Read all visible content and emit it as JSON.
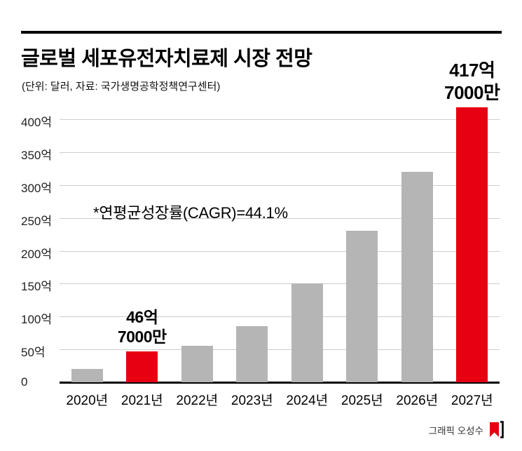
{
  "header": {
    "title": "글로벌 세포유전자치료제 시장 전망",
    "subtitle": "(단위: 달러, 자료: 국가생명공학정책연구센터)"
  },
  "chart_data": {
    "type": "bar",
    "title": "글로벌 세포유전자치료제 시장 전망",
    "unit_source_note": "(단위: 달러, 자료: 국가생명공학정책연구센터)",
    "annotation": "*연평균성장률(CAGR)=44.1%",
    "categories": [
      "2020년",
      "2021년",
      "2022년",
      "2023년",
      "2024년",
      "2025년",
      "2026년",
      "2027년"
    ],
    "values": [
      20,
      46.7,
      55,
      85,
      150,
      230,
      320,
      417.7
    ],
    "highlight_indices": [
      1,
      7
    ],
    "value_labels": [
      {
        "index": 1,
        "lines": [
          "46억",
          "7000만"
        ]
      },
      {
        "index": 7,
        "lines": [
          "417억",
          "7000만"
        ]
      }
    ],
    "yticks": [
      {
        "label": "400억",
        "value": 400
      },
      {
        "label": "350억",
        "value": 350
      },
      {
        "label": "300억",
        "value": 300
      },
      {
        "label": "250억",
        "value": 250
      },
      {
        "label": "200억",
        "value": 200
      },
      {
        "label": "150억",
        "value": 150
      },
      {
        "label": "100억",
        "value": 100
      },
      {
        "label": "50억",
        "value": 50
      },
      {
        "label": "0",
        "value": 0
      }
    ],
    "ylim": [
      0,
      400
    ],
    "grid": true,
    "legend_position": "none",
    "xlabel": "",
    "ylabel": "",
    "colors": {
      "bar": "#b5b5b5",
      "highlight": "#e60012",
      "gridline": "#cccccc",
      "axis": "#000000"
    }
  },
  "footer": {
    "credit": "그래픽 오성수"
  }
}
